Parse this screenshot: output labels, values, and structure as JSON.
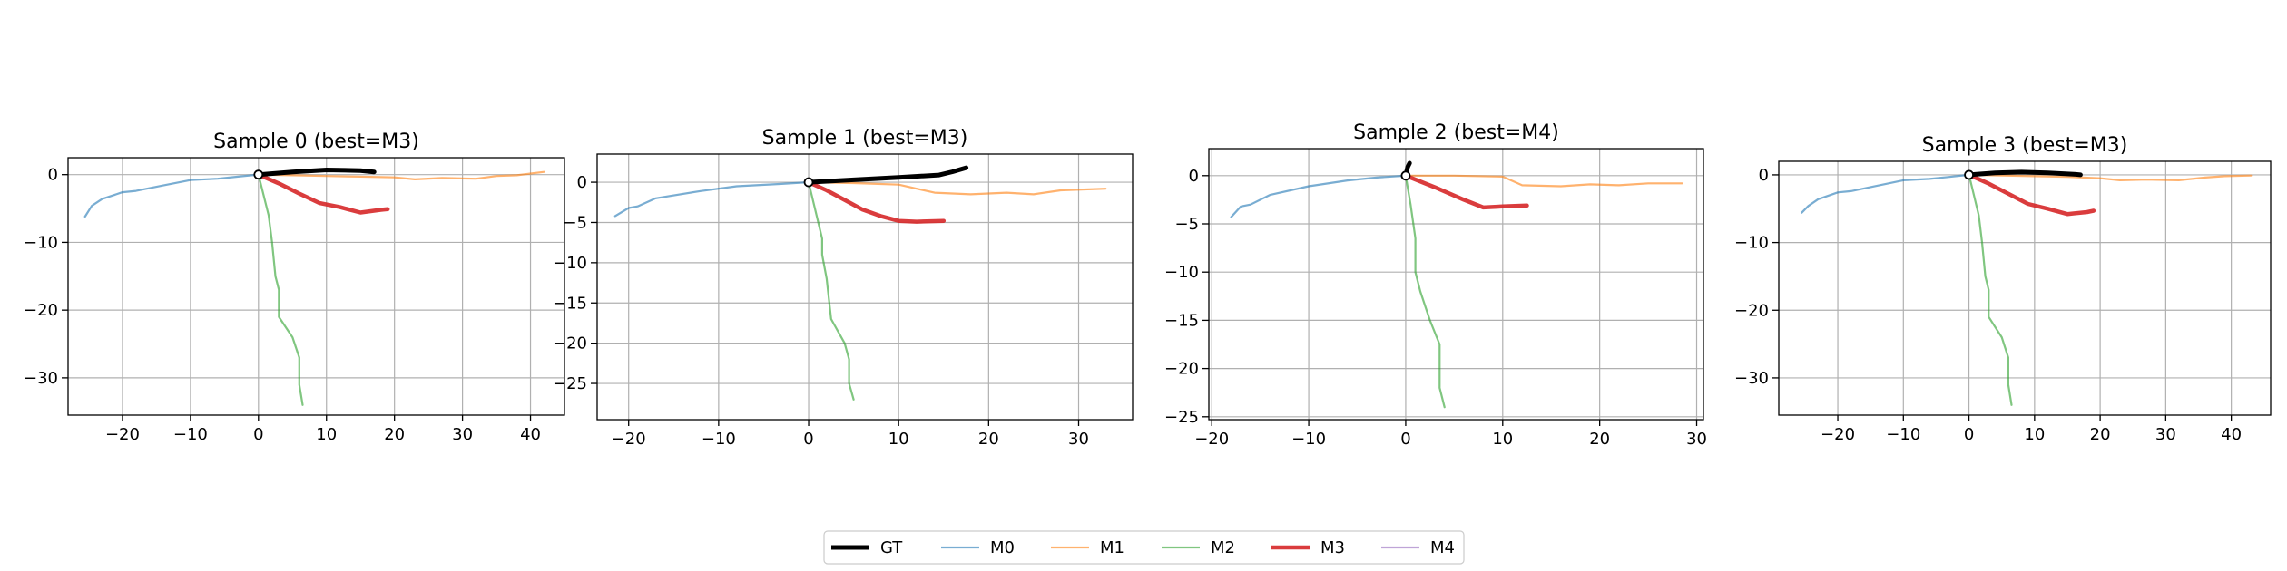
{
  "colors": {
    "GT": "#000000",
    "M0": "#1f77b4",
    "M1": "#ff7f0e",
    "M2": "#2ca02c",
    "M3": "#d62728",
    "M4": "#9467bd",
    "grid": "#b0b0b0"
  },
  "legend": {
    "placement": "bottom-center",
    "entries": [
      "GT",
      "M0",
      "M1",
      "M2",
      "M3",
      "M4"
    ]
  },
  "chart_data": [
    {
      "type": "line",
      "title": "Sample 0 (best=M3)",
      "xlim": [
        -28,
        45
      ],
      "ylim": [
        -35.5,
        2.5
      ],
      "xticks": [
        -20,
        -10,
        0,
        10,
        20,
        30,
        40
      ],
      "xtick_labels": [
        "−20",
        "−10",
        "0",
        "10",
        "20",
        "30",
        "40"
      ],
      "yticks": [
        0,
        -10,
        -20,
        -30
      ],
      "ytick_labels": [
        "0",
        "−10",
        "−20",
        "−30"
      ],
      "grid": true,
      "series": [
        {
          "name": "GT",
          "x": [
            0,
            5,
            10,
            15,
            17
          ],
          "y": [
            0,
            0.4,
            0.7,
            0.6,
            0.4
          ]
        },
        {
          "name": "M0",
          "x": [
            0,
            -3,
            -6,
            -10,
            -14,
            -18,
            -20,
            -23,
            -24.5,
            -25.5
          ],
          "y": [
            0,
            -0.3,
            -0.6,
            -0.8,
            -1.6,
            -2.4,
            -2.6,
            -3.6,
            -4.6,
            -6.2
          ]
        },
        {
          "name": "M1",
          "x": [
            0,
            5,
            10,
            15,
            20,
            23,
            27,
            32,
            35,
            38,
            42
          ],
          "y": [
            0,
            -0.1,
            -0.2,
            -0.3,
            -0.4,
            -0.7,
            -0.5,
            -0.6,
            -0.2,
            -0.1,
            0.4
          ]
        },
        {
          "name": "M2",
          "x": [
            0,
            1.5,
            2,
            2.5,
            3,
            3,
            5,
            6,
            6,
            6.5
          ],
          "y": [
            0,
            -6,
            -10,
            -15,
            -17,
            -21,
            -24,
            -27,
            -31,
            -34
          ]
        },
        {
          "name": "M3",
          "x": [
            0,
            3,
            6,
            9,
            12,
            15,
            18,
            19
          ],
          "y": [
            0,
            -1.3,
            -2.8,
            -4.2,
            -4.8,
            -5.6,
            -5.2,
            -5.1
          ]
        },
        {
          "name": "M4",
          "x": [],
          "y": []
        }
      ]
    },
    {
      "type": "line",
      "title": "Sample 1 (best=M3)",
      "xlim": [
        -23.5,
        36
      ],
      "ylim": [
        -29.5,
        3.5
      ],
      "xticks": [
        -20,
        -10,
        0,
        10,
        20,
        30
      ],
      "xtick_labels": [
        "−20",
        "−10",
        "0",
        "10",
        "20",
        "30"
      ],
      "yticks": [
        0,
        -5,
        -10,
        -15,
        -20,
        -25
      ],
      "ytick_labels": [
        "0",
        "−5",
        "−10",
        "−15",
        "−20",
        "−25"
      ],
      "grid": true,
      "series": [
        {
          "name": "GT",
          "x": [
            0,
            5,
            10,
            14.5,
            16,
            17.5
          ],
          "y": [
            0,
            0.3,
            0.6,
            0.9,
            1.3,
            1.8
          ]
        },
        {
          "name": "M0",
          "x": [
            0,
            -3,
            -8,
            -12,
            -17,
            -19,
            -20,
            -21.5
          ],
          "y": [
            0,
            -0.2,
            -0.5,
            -1.1,
            -2.0,
            -3.0,
            -3.2,
            -4.2
          ]
        },
        {
          "name": "M1",
          "x": [
            0,
            5,
            10,
            14,
            18,
            22,
            25,
            28,
            33
          ],
          "y": [
            0,
            -0.1,
            -0.3,
            -1.3,
            -1.5,
            -1.3,
            -1.5,
            -1.0,
            -0.8
          ]
        },
        {
          "name": "M2",
          "x": [
            0,
            1.5,
            1.5,
            2,
            2.5,
            4,
            4.5,
            4.5,
            5
          ],
          "y": [
            0,
            -7,
            -9,
            -12,
            -17,
            -20,
            -22,
            -25,
            -27
          ]
        },
        {
          "name": "M3",
          "x": [
            0,
            2,
            4,
            6,
            8,
            10,
            12,
            15
          ],
          "y": [
            0,
            -1.0,
            -2.2,
            -3.4,
            -4.2,
            -4.8,
            -4.9,
            -4.8
          ]
        },
        {
          "name": "M4",
          "x": [],
          "y": []
        }
      ]
    },
    {
      "type": "line",
      "title": "Sample 2 (best=M4)",
      "xlim": [
        -20.3,
        30.7
      ],
      "ylim": [
        -25.3,
        2.8
      ],
      "xticks": [
        -20,
        -10,
        0,
        10,
        20,
        30
      ],
      "xtick_labels": [
        "−20",
        "−10",
        "0",
        "10",
        "20",
        "30"
      ],
      "yticks": [
        0,
        -5,
        -10,
        -15,
        -20,
        -25
      ],
      "ytick_labels": [
        "0",
        "−5",
        "−10",
        "−15",
        "−20",
        "−25"
      ],
      "grid": true,
      "series": [
        {
          "name": "GT",
          "x": [
            0,
            0.2,
            0.4
          ],
          "y": [
            0,
            0.9,
            1.3
          ]
        },
        {
          "name": "M0",
          "x": [
            0,
            -3,
            -6,
            -10,
            -14,
            -16,
            -17,
            -18
          ],
          "y": [
            0,
            -0.2,
            -0.5,
            -1.1,
            -2.0,
            -3.0,
            -3.2,
            -4.3
          ]
        },
        {
          "name": "M1",
          "x": [
            0,
            5,
            10,
            12,
            16,
            19,
            22,
            25,
            28.5
          ],
          "y": [
            0,
            0,
            -0.1,
            -1.0,
            -1.1,
            -0.9,
            -1.0,
            -0.8,
            -0.8
          ]
        },
        {
          "name": "M2",
          "x": [
            0,
            0.5,
            1,
            1,
            1.5,
            2.5,
            3.5,
            3.5,
            4
          ],
          "y": [
            0,
            -3,
            -6.5,
            -10,
            -12,
            -15,
            -17.5,
            -22,
            -24
          ]
        },
        {
          "name": "M3",
          "x": [
            0,
            3,
            6,
            8,
            10,
            12.5
          ],
          "y": [
            0,
            -1.2,
            -2.5,
            -3.3,
            -3.2,
            -3.1
          ]
        },
        {
          "name": "M4",
          "x": [],
          "y": []
        }
      ]
    },
    {
      "type": "line",
      "title": "Sample 3 (best=M3)",
      "xlim": [
        -29,
        46
      ],
      "ylim": [
        -35.5,
        2
      ],
      "xticks": [
        -20,
        -10,
        0,
        10,
        20,
        30,
        40
      ],
      "xtick_labels": [
        "−20",
        "−10",
        "0",
        "10",
        "20",
        "30",
        "40"
      ],
      "yticks": [
        0,
        -10,
        -20,
        -30
      ],
      "ytick_labels": [
        "0",
        "−10",
        "−20",
        "−30"
      ],
      "grid": true,
      "series": [
        {
          "name": "GT",
          "x": [
            0,
            4,
            8,
            12,
            16,
            17
          ],
          "y": [
            0,
            0.3,
            0.4,
            0.3,
            0.1,
            0
          ]
        },
        {
          "name": "M0",
          "x": [
            0,
            -3,
            -6,
            -10,
            -14,
            -18,
            -20,
            -23,
            -24.5,
            -25.5
          ],
          "y": [
            0,
            -0.3,
            -0.6,
            -0.8,
            -1.6,
            -2.4,
            -2.6,
            -3.6,
            -4.6,
            -5.6
          ]
        },
        {
          "name": "M1",
          "x": [
            0,
            5,
            10,
            15,
            20,
            23,
            27,
            32,
            36,
            39,
            43
          ],
          "y": [
            0,
            -0.1,
            -0.2,
            -0.3,
            -0.5,
            -0.8,
            -0.7,
            -0.8,
            -0.4,
            -0.2,
            -0.1
          ]
        },
        {
          "name": "M2",
          "x": [
            0,
            1.5,
            2,
            2.5,
            3,
            3,
            5,
            6,
            6,
            6.5
          ],
          "y": [
            0,
            -6,
            -10,
            -15,
            -17,
            -21,
            -24,
            -27,
            -31,
            -34
          ]
        },
        {
          "name": "M3",
          "x": [
            0,
            3,
            6,
            9,
            12,
            15,
            18,
            19
          ],
          "y": [
            0,
            -1.3,
            -2.8,
            -4.3,
            -5,
            -5.8,
            -5.5,
            -5.3
          ]
        },
        {
          "name": "M4",
          "x": [],
          "y": []
        }
      ]
    }
  ]
}
